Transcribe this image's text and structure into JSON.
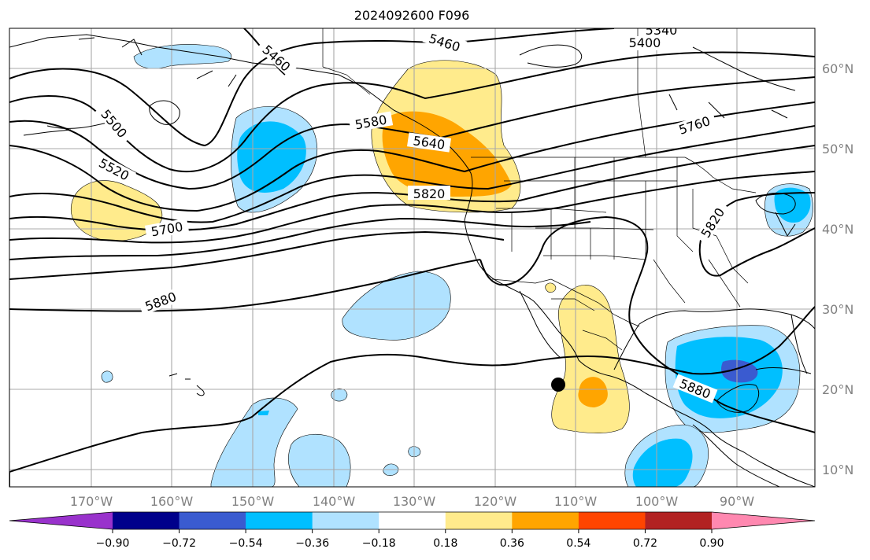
{
  "title": "2024092600 F096",
  "lat_labels": [
    "60°N",
    "50°N",
    "40°N",
    "30°N",
    "20°N",
    "10°N"
  ],
  "lon_labels": [
    "170°W",
    "160°W",
    "150°W",
    "140°W",
    "130°W",
    "120°W",
    "110°W",
    "100°W",
    "90°W"
  ],
  "colorbar": {
    "ticks": [
      "−0.90",
      "−0.72",
      "−0.54",
      "−0.36",
      "−0.18",
      "0.18",
      "0.36",
      "0.54",
      "0.72",
      "0.90"
    ],
    "colors": [
      "#9932cc",
      "#00008b",
      "#3a5bd0",
      "#00bfff",
      "#b0e2ff",
      "#ffffff",
      "#ffeb8c",
      "#ffa500",
      "#ff4500",
      "#b22222",
      "#ff88b0"
    ]
  },
  "contours": {
    "c5340": "5340",
    "c5400": "5400",
    "c5460a": "5460",
    "c5460b": "5460",
    "c5500": "5500",
    "c5520": "5520",
    "c5580": "5580",
    "c5640": "5640",
    "c5700": "5700",
    "c5760": "5760",
    "c5820a": "5820",
    "c5820b": "5820",
    "c5880a": "5880",
    "c5880b": "5880"
  },
  "colors": {
    "coast": "#000000",
    "grid": "#a8a8a8",
    "tick_text": "#808080"
  }
}
